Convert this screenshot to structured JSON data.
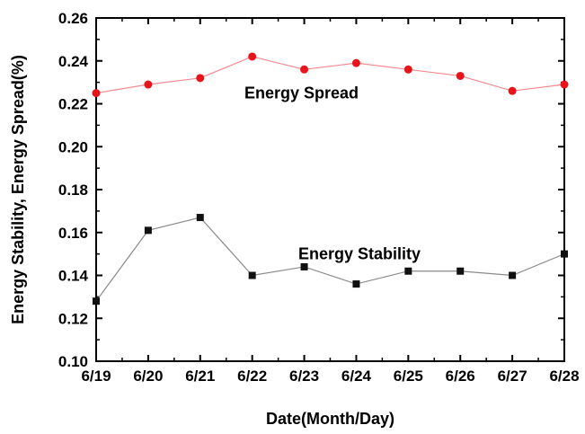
{
  "chart_data": {
    "type": "line",
    "title": "",
    "xlabel": "Date(Month/Day)",
    "ylabel": "Energy Stability, Energy Spread(%)",
    "categories": [
      "6/19",
      "6/20",
      "6/21",
      "6/22",
      "6/23",
      "6/24",
      "6/25",
      "6/26",
      "6/27",
      "6/28"
    ],
    "ylim": [
      0.1,
      0.26
    ],
    "yticks": [
      "0.10",
      "0.12",
      "0.14",
      "0.16",
      "0.18",
      "0.20",
      "0.22",
      "0.24",
      "0.26"
    ],
    "grid": false,
    "series": [
      {
        "name": "Energy Spread",
        "marker": "circle",
        "color": "#e8141b",
        "line_color": "#f08a8f",
        "values": [
          0.225,
          0.229,
          0.232,
          0.242,
          0.236,
          0.239,
          0.236,
          0.233,
          0.226,
          0.229
        ]
      },
      {
        "name": "Energy Stability",
        "marker": "square",
        "color": "#111111",
        "line_color": "#8a8a8a",
        "values": [
          0.128,
          0.161,
          0.167,
          0.14,
          0.144,
          0.136,
          0.142,
          0.142,
          0.14,
          0.15
        ]
      }
    ]
  }
}
